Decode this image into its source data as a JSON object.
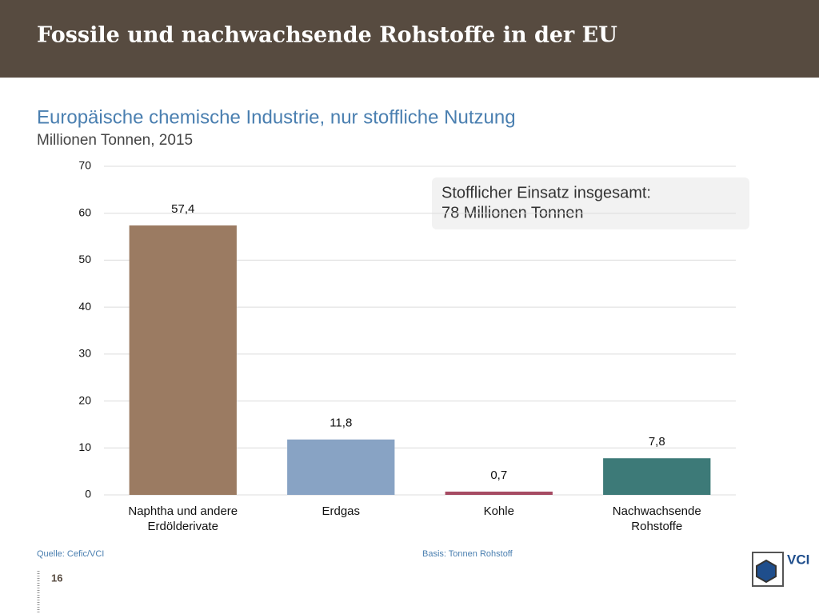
{
  "header": {
    "title": "Fossile und nachwachsende Rohstoffe in der EU"
  },
  "chart_data": {
    "type": "bar",
    "title": "Europäische chemische Industrie, nur stoffliche Nutzung",
    "subtitle": "Millionen Tonnen, 2015",
    "categories": [
      "Naphtha und andere Erdölderivate",
      "Erdgas",
      "Kohle",
      "Nachwachsende Rohstoffe"
    ],
    "values": [
      57.4,
      11.8,
      0.7,
      7.8
    ],
    "value_labels": [
      "57,4",
      "11,8",
      "0,7",
      "7,8"
    ],
    "colors": [
      "#9b7b62",
      "#88a3c4",
      "#a64b63",
      "#3d7a78"
    ],
    "ylim": [
      0,
      70
    ],
    "yticks": [
      0,
      10,
      20,
      30,
      40,
      50,
      60,
      70
    ],
    "grid": true,
    "annotation": [
      "Stofflicher Einsatz insgesamt:",
      "78 Millionen Tonnen"
    ]
  },
  "footer": {
    "source": "Quelle: Cefic/VCI",
    "basis": "Basis: Tonnen Rohstoff",
    "page": "16",
    "logo": "VCI"
  }
}
